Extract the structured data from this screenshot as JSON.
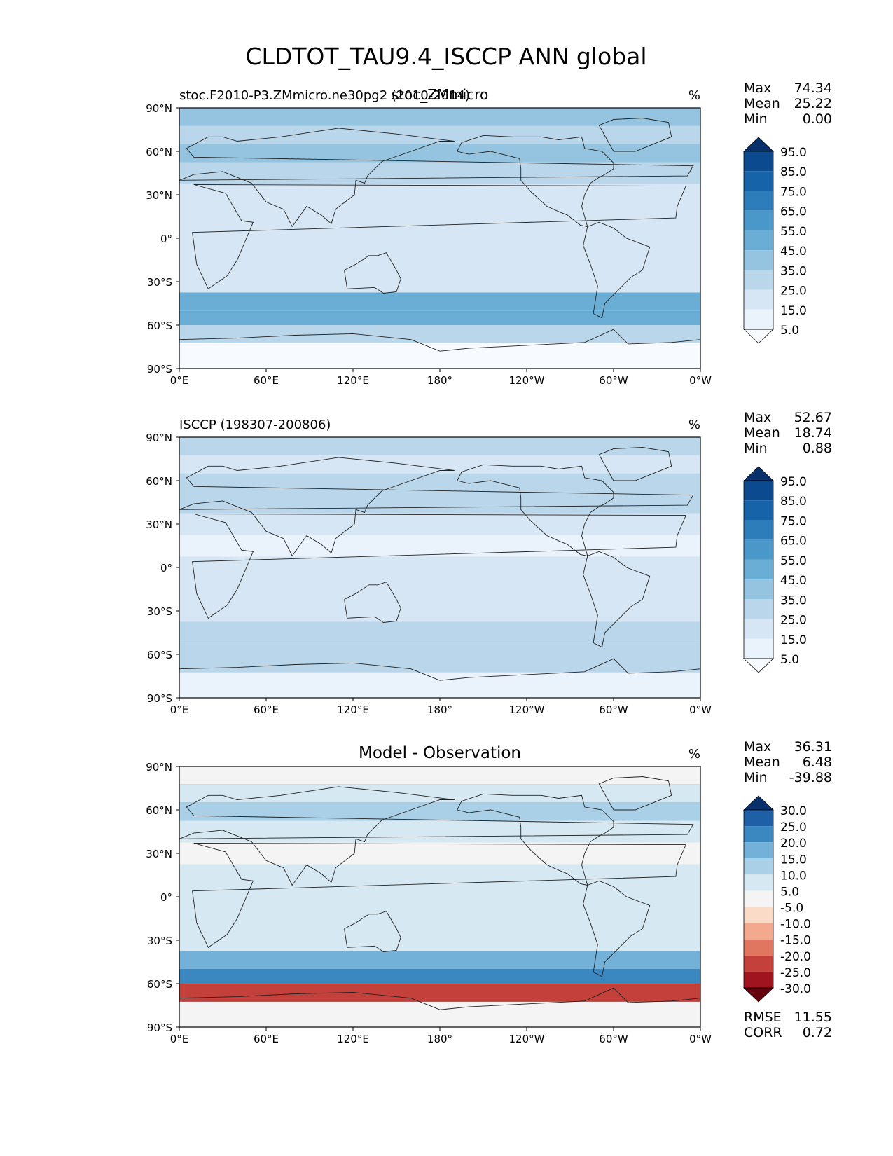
{
  "figure": {
    "title": "CLDTOT_TAU9.4_ISCCP ANN global"
  },
  "chart_data": [
    {
      "type": "heatmap",
      "panel": "test",
      "left_title": "stoc.F2010-P3.ZMmicro.ne30pg2 (2010-2014)",
      "center_title": "stoc_ZMmicro",
      "units": "%",
      "stats": {
        "max": "74.34",
        "mean": "25.22",
        "min": "0.00"
      },
      "colormap": "Blues",
      "colorbar_levels": [
        "95.0",
        "85.0",
        "75.0",
        "65.0",
        "55.0",
        "45.0",
        "35.0",
        "25.0",
        "15.0",
        "5.0"
      ],
      "colors": [
        "#08306b",
        "#0b4a8f",
        "#1663aa",
        "#2d7dbb",
        "#4a98c9",
        "#6aaed6",
        "#94c4df",
        "#bad6eb",
        "#d6e6f4",
        "#eaf2fb",
        "#f7fbff"
      ],
      "xticks": [
        "0°E",
        "60°E",
        "120°E",
        "180°",
        "120°W",
        "60°W",
        "0°W"
      ],
      "yticks": [
        "90°N",
        "60°N",
        "30°N",
        "0°",
        "30°S",
        "60°S",
        "90°S"
      ],
      "zonal_mean_approx": [
        {
          "lat": 85,
          "value": 40
        },
        {
          "lat": 70,
          "value": 25
        },
        {
          "lat": 60,
          "value": 35
        },
        {
          "lat": 45,
          "value": 30
        },
        {
          "lat": 30,
          "value": 15
        },
        {
          "lat": 15,
          "value": 18
        },
        {
          "lat": 0,
          "value": 22
        },
        {
          "lat": -15,
          "value": 20
        },
        {
          "lat": -30,
          "value": 22
        },
        {
          "lat": -45,
          "value": 45
        },
        {
          "lat": -55,
          "value": 50
        },
        {
          "lat": -65,
          "value": 25
        },
        {
          "lat": -80,
          "value": 3
        }
      ]
    },
    {
      "type": "heatmap",
      "panel": "reference",
      "left_title": "ISCCP (198307-200806)",
      "center_title": "",
      "units": "%",
      "stats": {
        "max": "52.67",
        "mean": "18.74",
        "min": "0.88"
      },
      "colormap": "Blues",
      "colorbar_levels": [
        "95.0",
        "85.0",
        "75.0",
        "65.0",
        "55.0",
        "45.0",
        "35.0",
        "25.0",
        "15.0",
        "5.0"
      ],
      "colors": [
        "#08306b",
        "#0b4a8f",
        "#1663aa",
        "#2d7dbb",
        "#4a98c9",
        "#6aaed6",
        "#94c4df",
        "#bad6eb",
        "#d6e6f4",
        "#eaf2fb",
        "#f7fbff"
      ],
      "xticks": [
        "0°E",
        "60°E",
        "120°E",
        "180°",
        "120°W",
        "60°W",
        "0°W"
      ],
      "yticks": [
        "90°N",
        "60°N",
        "30°N",
        "0°",
        "30°S",
        "60°S",
        "90°S"
      ],
      "zonal_mean_approx": [
        {
          "lat": 85,
          "value": 25
        },
        {
          "lat": 70,
          "value": 20
        },
        {
          "lat": 60,
          "value": 25
        },
        {
          "lat": 45,
          "value": 25
        },
        {
          "lat": 30,
          "value": 15
        },
        {
          "lat": 15,
          "value": 12
        },
        {
          "lat": 0,
          "value": 18
        },
        {
          "lat": -15,
          "value": 15
        },
        {
          "lat": -30,
          "value": 18
        },
        {
          "lat": -45,
          "value": 30
        },
        {
          "lat": -55,
          "value": 32
        },
        {
          "lat": -65,
          "value": 25
        },
        {
          "lat": -80,
          "value": 10
        }
      ]
    },
    {
      "type": "heatmap",
      "panel": "difference",
      "left_title": "",
      "center_title": "Model - Observation",
      "units": "%",
      "stats": {
        "max": "36.31",
        "mean": "6.48",
        "min": "-39.88"
      },
      "colormap": "RdBu_r",
      "colorbar_levels": [
        "30.0",
        "25.0",
        "20.0",
        "15.0",
        "10.0",
        "5.0",
        "-5.0",
        "-10.0",
        "-15.0",
        "-20.0",
        "-25.0",
        "-30.0"
      ],
      "colors": [
        "#08306b",
        "#1f5fa6",
        "#3b87c0",
        "#73b1d8",
        "#a9d0e6",
        "#d6e8f2",
        "#f4f4f4",
        "#fadbc8",
        "#f3a98d",
        "#e07560",
        "#c4403b",
        "#a0141f",
        "#67000d"
      ],
      "metrics": {
        "rmse_label": "RMSE",
        "rmse": "11.55",
        "corr_label": "CORR",
        "corr": "0.72"
      },
      "xticks": [
        "0°E",
        "60°E",
        "120°E",
        "180°",
        "120°W",
        "60°W",
        "0°W"
      ],
      "yticks": [
        "90°N",
        "60°N",
        "30°N",
        "0°",
        "30°S",
        "60°S",
        "90°S"
      ],
      "zonal_mean_approx": [
        {
          "lat": 85,
          "value": -5
        },
        {
          "lat": 70,
          "value": 5
        },
        {
          "lat": 60,
          "value": 10
        },
        {
          "lat": 45,
          "value": 5
        },
        {
          "lat": 30,
          "value": 0
        },
        {
          "lat": 15,
          "value": 5
        },
        {
          "lat": 0,
          "value": 5
        },
        {
          "lat": -15,
          "value": 5
        },
        {
          "lat": -30,
          "value": 5
        },
        {
          "lat": -45,
          "value": 15
        },
        {
          "lat": -55,
          "value": 20
        },
        {
          "lat": -65,
          "value": -25
        },
        {
          "lat": -80,
          "value": -5
        }
      ]
    }
  ]
}
